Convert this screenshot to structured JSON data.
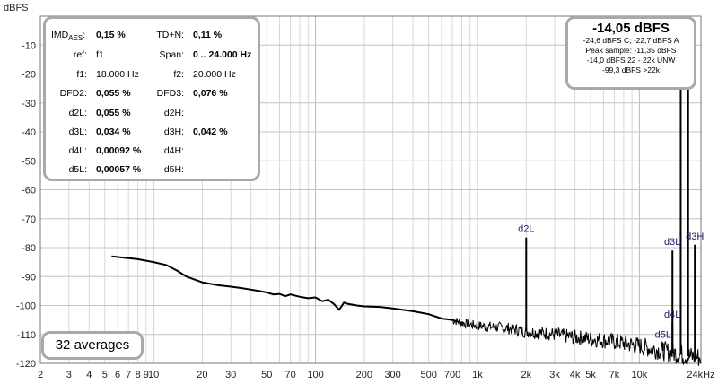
{
  "chart_data": {
    "type": "line",
    "ylabel": "dBFS",
    "xlabel": "",
    "xscale": "log",
    "xlim": [
      2,
      24000
    ],
    "ylim": [
      -120,
      0
    ],
    "grid": true,
    "y_ticks": [
      "-10",
      "-20",
      "-30",
      "-40",
      "-50",
      "-60",
      "-70",
      "-80",
      "-90",
      "-100",
      "-110",
      "-120"
    ],
    "x_ticks": [
      {
        "v": 2,
        "t": "2"
      },
      {
        "v": 3,
        "t": "3"
      },
      {
        "v": 4,
        "t": "4"
      },
      {
        "v": 5,
        "t": "5"
      },
      {
        "v": 6,
        "t": "6"
      },
      {
        "v": 7,
        "t": "7"
      },
      {
        "v": 8,
        "t": "8"
      },
      {
        "v": 9,
        "t": "9"
      },
      {
        "v": 10,
        "t": "10"
      },
      {
        "v": 20,
        "t": "20"
      },
      {
        "v": 30,
        "t": "30"
      },
      {
        "v": 50,
        "t": "50"
      },
      {
        "v": 70,
        "t": "70"
      },
      {
        "v": 100,
        "t": "100"
      },
      {
        "v": 200,
        "t": "200"
      },
      {
        "v": 300,
        "t": "300"
      },
      {
        "v": 500,
        "t": "500"
      },
      {
        "v": 700,
        "t": "700"
      },
      {
        "v": 1000,
        "t": "1k"
      },
      {
        "v": 2000,
        "t": "2k"
      },
      {
        "v": 3000,
        "t": "3k"
      },
      {
        "v": 4000,
        "t": "4k"
      },
      {
        "v": 5000,
        "t": "5k"
      },
      {
        "v": 7000,
        "t": "7k"
      },
      {
        "v": 10000,
        "t": "10k"
      },
      {
        "v": 24000,
        "t": "24kHz"
      }
    ],
    "series": [
      {
        "points": [
          [
            5.5,
            -83
          ],
          [
            8,
            -84
          ],
          [
            10,
            -85
          ],
          [
            12,
            -86
          ],
          [
            14,
            -88
          ],
          [
            16,
            -90
          ],
          [
            20,
            -92
          ],
          [
            25,
            -93
          ],
          [
            30,
            -93.5
          ],
          [
            35,
            -94
          ],
          [
            40,
            -94.5
          ],
          [
            45,
            -95
          ],
          [
            50,
            -95.5
          ],
          [
            55,
            -96.2
          ],
          [
            60,
            -96
          ],
          [
            65,
            -96.8
          ],
          [
            70,
            -96.2
          ],
          [
            80,
            -97
          ],
          [
            90,
            -97.5
          ],
          [
            100,
            -97.2
          ],
          [
            110,
            -98.5
          ],
          [
            120,
            -98
          ],
          [
            130,
            -99.5
          ],
          [
            140,
            -101.5
          ],
          [
            150,
            -99
          ],
          [
            160,
            -99.5
          ],
          [
            180,
            -100
          ],
          [
            200,
            -100.3
          ],
          [
            250,
            -100.5
          ],
          [
            300,
            -101
          ],
          [
            400,
            -102
          ],
          [
            500,
            -103
          ],
          [
            600,
            -104.5
          ],
          [
            700,
            -105
          ],
          [
            800,
            -106
          ],
          [
            1000,
            -107
          ],
          [
            1300,
            -107.5
          ],
          [
            1600,
            -108
          ],
          [
            2000,
            -109
          ],
          [
            2500,
            -109.5
          ],
          [
            3000,
            -110
          ],
          [
            4000,
            -111
          ],
          [
            5000,
            -111.5
          ],
          [
            6000,
            -112
          ],
          [
            7000,
            -112.5
          ],
          [
            8000,
            -113
          ],
          [
            10000,
            -114
          ],
          [
            12000,
            -115
          ],
          [
            15000,
            -116
          ],
          [
            18000,
            -117
          ],
          [
            20000,
            -117.5
          ],
          [
            24000,
            -118
          ]
        ]
      }
    ],
    "peaks": [
      {
        "f": 2000,
        "level": -76.5,
        "label": "d2L"
      },
      {
        "f": 14000,
        "level": -113,
        "label": "d5L"
      },
      {
        "f": 16000,
        "level": -106,
        "label": "d4L"
      },
      {
        "f": 18000,
        "level": -14,
        "label": ""
      },
      {
        "f": 20000,
        "level": -14,
        "label": ""
      },
      {
        "f": 16000,
        "level": -81,
        "label": "d3L"
      },
      {
        "f": 22000,
        "level": -79,
        "label": "d3H"
      }
    ]
  },
  "stats": {
    "imd_label": "IMD",
    "imd_sub": "AES",
    "imd_value": "0,15 %",
    "tdn_label": "TD+N:",
    "tdn_value": "0,11 %",
    "ref_label": "ref:",
    "ref_value": "f1",
    "span_label": "Span:",
    "span_value": "0 .. 24.000 Hz",
    "f1_label": "f1:",
    "f1_value": "18.000 Hz",
    "f2_label": "f2:",
    "f2_value": "20.000 Hz",
    "dfd2_label": "DFD2:",
    "dfd2_value": "0,055 %",
    "dfd3_label": "DFD3:",
    "dfd3_value": "0,076 %",
    "d2l_label": "d2L:",
    "d2l_value": "0,055 %",
    "d2h_label": "d2H:",
    "d3l_label": "d3L:",
    "d3l_value": "0,034 %",
    "d3h_label": "d3H:",
    "d3h_value": "0,042 %",
    "d4l_label": "d4L:",
    "d4l_value": "0,00092 %",
    "d4h_label": "d4H:",
    "d5l_label": "d5L:",
    "d5l_value": "0,00057 %",
    "d5h_label": "d5H:"
  },
  "level": {
    "main": "-14,05 dBFS",
    "line1": "-24,6 dBFS C; -22,7 dBFS A",
    "line2": "Peak sample: -11,35 dBFS",
    "line3": "-14,0 dBFS 22 - 22k UNW",
    "line4": "-99,3 dBFS >22k"
  },
  "averages": "32 averages"
}
